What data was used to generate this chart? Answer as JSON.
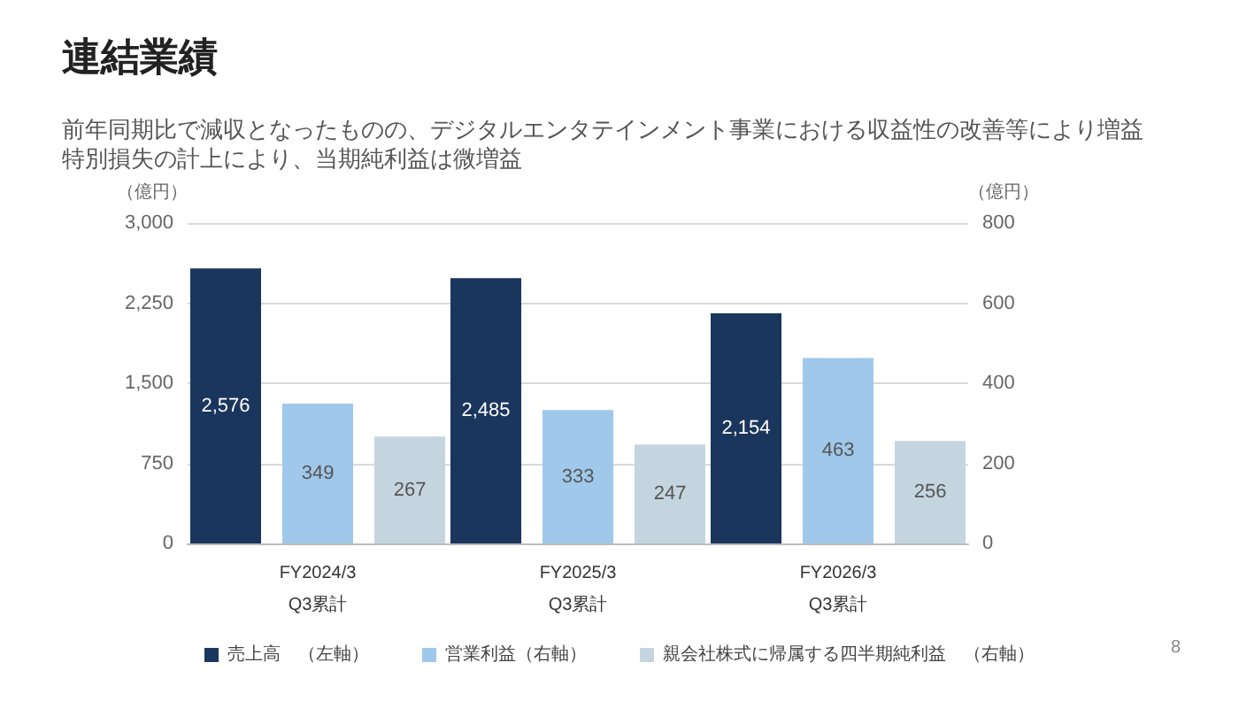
{
  "chart_data": {
    "type": "bar",
    "title": "連結業績",
    "subtitle": "前年同期比で減収となったものの、デジタルエンタテインメント事業における収益性の改善等により増益",
    "categories": [
      "FY2024/3\nQ3累計",
      "FY2025/3\nQ3累計",
      "FY2026/3\nQ3累計"
    ],
    "series": [
      {
        "name": "売上高　（左軸）",
        "color": "#1b365d",
        "values": [
          2576,
          2485,
          2154
        ],
        "value_labels": [
          "2,576",
          "2,485",
          "2,154"
        ]
      },
      {
        "name": "営業利益（右軸）",
        "color": "#9fc8ea",
        "values": [
          349,
          333,
          463
        ],
        "axis": "y2",
        "value_labels": [
          "349",
          "333",
          "463"
        ]
      },
      {
        "name": "親会社株式に帰属する四半期純利益　（右軸）",
        "color": "#c5d5e0",
        "values": [
          267,
          247,
          256
        ],
        "axis": "y2",
        "value_labels": [
          "267",
          "247",
          "256"
        ]
      }
    ],
    "ylabel": "（億円）",
    "y2label": "（億円）",
    "ylim": [
      0,
      3000
    ],
    "yticks": [
      {
        "value": 0,
        "label": "0"
      },
      {
        "value": 750,
        "label": "750"
      },
      {
        "value": 1500,
        "label": "1,500"
      },
      {
        "value": 2250,
        "label": "2,250"
      },
      {
        "value": 3000,
        "label": "3,000"
      }
    ],
    "y2lim": [
      0,
      800
    ],
    "y2ticks": [
      0,
      200,
      400,
      600,
      800
    ],
    "grid": "y",
    "legend": "bottom",
    "annotations": [
      "特別損失の計上により、当期純利益は微増益",
      "8"
    ]
  }
}
